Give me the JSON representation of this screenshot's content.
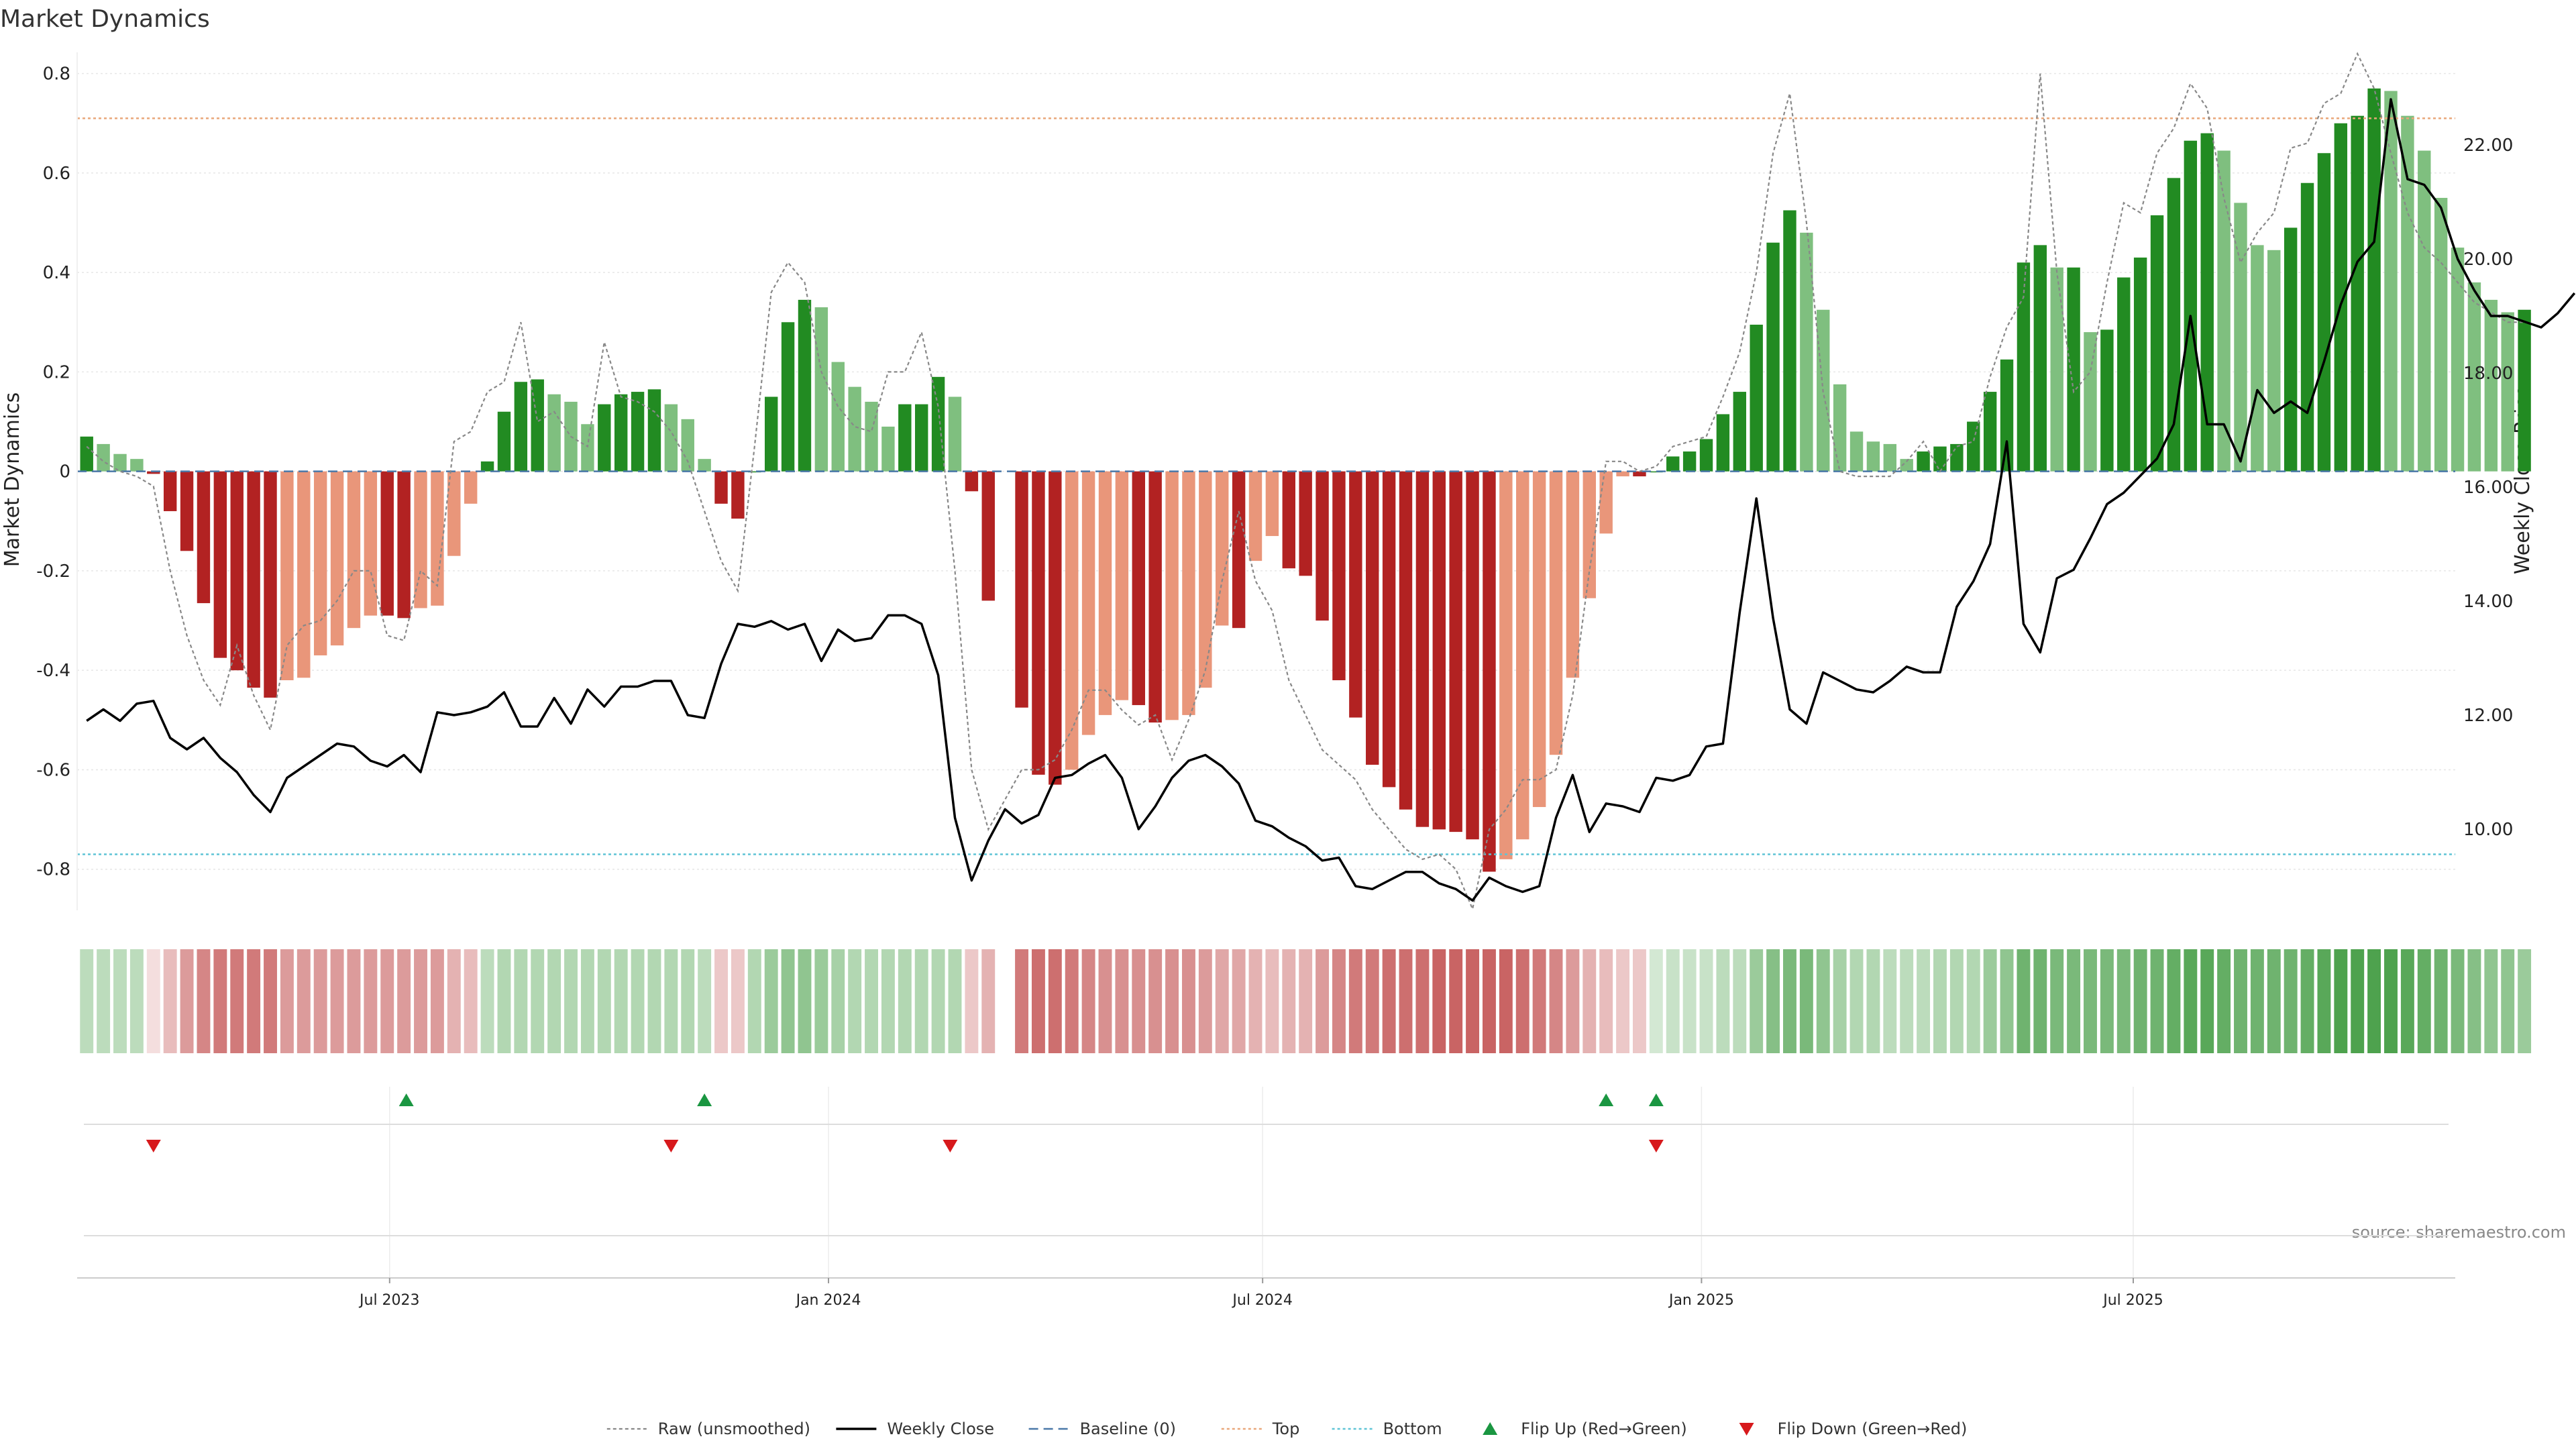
{
  "colors": {
    "dark_green": "#228B22",
    "light_green": "#7fbf7f",
    "dark_red": "#b22222",
    "light_red": "#e9967a",
    "raw_line": "#888888",
    "close_line": "#000000",
    "baseline": "#4a78a8",
    "top": "#e9a77a",
    "bottom": "#5fc4d6",
    "flip_up": "#1a9641",
    "flip_down": "#d7191c"
  },
  "chart_data": {
    "type": "bar",
    "title": "Market Dynamics",
    "ylabel_left": "Market Dynamics",
    "ylabel_right": "Weekly Close Price",
    "ylim_left": [
      -0.88,
      0.84
    ],
    "ylim_right": [
      8.6,
      23.6
    ],
    "yticks_left": [
      "-0.8",
      "-0.6",
      "-0.4",
      "-0.2",
      "0",
      "0.2",
      "0.4",
      "0.6",
      "0.8"
    ],
    "yticks_right": [
      "10.00",
      "12.00",
      "14.00",
      "16.00",
      "18.00",
      "20.00",
      "22.00"
    ],
    "x_range": [
      "2023-02-20",
      "2025-11-13"
    ],
    "xticks": [
      {
        "date": "2023-07-01",
        "label": "Jul 2023"
      },
      {
        "date": "2024-01-01",
        "label": "Jan 2024"
      },
      {
        "date": "2024-07-01",
        "label": "Jul 2024"
      },
      {
        "date": "2025-01-01",
        "label": "Jan 2025"
      },
      {
        "date": "2025-07-01",
        "label": "Jul 2025"
      }
    ],
    "start_week": "2023-02-24",
    "top_level": 0.71,
    "bottom_level": -0.77,
    "baseline_level": 0,
    "bars": [
      0.07,
      0.055,
      0.035,
      0.025,
      -0.005,
      -0.08,
      -0.16,
      -0.265,
      -0.375,
      -0.4,
      -0.435,
      -0.455,
      -0.42,
      -0.415,
      -0.37,
      -0.35,
      -0.315,
      -0.29,
      -0.29,
      -0.295,
      -0.275,
      -0.27,
      -0.17,
      -0.065,
      0.02,
      0.12,
      0.18,
      0.185,
      0.155,
      0.14,
      0.095,
      0.135,
      0.155,
      0.16,
      0.165,
      0.135,
      0.105,
      0.025,
      -0.065,
      -0.095,
      0.0,
      0.15,
      0.3,
      0.345,
      0.33,
      0.22,
      0.17,
      0.14,
      0.09,
      0.135,
      0.135,
      0.19,
      0.15,
      -0.04,
      -0.26,
      null,
      -0.475,
      -0.61,
      -0.63,
      -0.6,
      -0.53,
      -0.49,
      -0.46,
      -0.47,
      -0.505,
      -0.5,
      -0.49,
      -0.435,
      -0.31,
      -0.315,
      -0.18,
      -0.13,
      -0.195,
      -0.21,
      -0.3,
      -0.42,
      -0.495,
      -0.59,
      -0.635,
      -0.68,
      -0.715,
      -0.72,
      -0.725,
      -0.74,
      -0.805,
      -0.78,
      -0.74,
      -0.675,
      -0.57,
      -0.415,
      -0.255,
      -0.125,
      -0.01,
      -0.01,
      0.0,
      0.03,
      0.04,
      0.065,
      0.115,
      0.16,
      0.295,
      0.46,
      0.525,
      0.48,
      0.325,
      0.175,
      0.08,
      0.06,
      0.055,
      0.025,
      0.04,
      0.05,
      0.055,
      0.1,
      0.16,
      0.225,
      0.42,
      0.455,
      0.41,
      0.41,
      0.28,
      0.285,
      0.39,
      0.43,
      0.515,
      0.59,
      0.665,
      0.68,
      0.645,
      0.54,
      0.455,
      0.445,
      0.49,
      0.58,
      0.64,
      0.7,
      0.715,
      0.77,
      0.765,
      0.715,
      0.645,
      0.55,
      0.45,
      0.38,
      0.345,
      0.32,
      0.325
    ],
    "raw": [
      0.05,
      0.02,
      0.0,
      -0.01,
      -0.03,
      -0.2,
      -0.33,
      -0.42,
      -0.47,
      -0.35,
      -0.45,
      -0.52,
      -0.35,
      -0.31,
      -0.3,
      -0.26,
      -0.2,
      -0.2,
      -0.33,
      -0.34,
      -0.2,
      -0.23,
      0.06,
      0.08,
      0.16,
      0.18,
      0.3,
      0.1,
      0.12,
      0.07,
      0.05,
      0.26,
      0.15,
      0.14,
      0.12,
      0.08,
      0.02,
      -0.08,
      -0.18,
      -0.24,
      0.05,
      0.36,
      0.42,
      0.38,
      0.2,
      0.13,
      0.09,
      0.08,
      0.2,
      0.2,
      0.28,
      0.13,
      -0.2,
      -0.6,
      -0.72,
      -0.66,
      -0.6,
      -0.6,
      -0.58,
      -0.52,
      -0.44,
      -0.44,
      -0.48,
      -0.51,
      -0.49,
      -0.58,
      -0.5,
      -0.4,
      -0.22,
      -0.08,
      -0.22,
      -0.28,
      -0.42,
      -0.49,
      -0.56,
      -0.59,
      -0.62,
      -0.68,
      -0.72,
      -0.76,
      -0.78,
      -0.77,
      -0.8,
      -0.88,
      -0.72,
      -0.68,
      -0.62,
      -0.62,
      -0.6,
      -0.45,
      -0.2,
      0.02,
      0.02,
      0.0,
      0.01,
      0.05,
      0.06,
      0.07,
      0.15,
      0.24,
      0.4,
      0.64,
      0.76,
      0.5,
      0.16,
      0.0,
      -0.01,
      -0.01,
      -0.01,
      0.02,
      0.06,
      0.0,
      0.05,
      0.06,
      0.19,
      0.29,
      0.35,
      0.8,
      0.4,
      0.16,
      0.2,
      0.38,
      0.54,
      0.52,
      0.64,
      0.69,
      0.78,
      0.73,
      0.55,
      0.42,
      0.48,
      0.52,
      0.65,
      0.66,
      0.74,
      0.76,
      0.84,
      0.77,
      0.64,
      0.52,
      0.45,
      0.42,
      0.38,
      0.34,
      0.32,
      0.3,
      0.3
    ],
    "close": [
      11.9,
      12.1,
      11.9,
      12.2,
      12.25,
      11.6,
      11.4,
      11.6,
      11.25,
      11.0,
      10.6,
      10.3,
      10.9,
      11.1,
      11.3,
      11.5,
      11.45,
      11.2,
      11.1,
      11.3,
      11.0,
      12.05,
      12.0,
      12.05,
      12.15,
      12.4,
      11.8,
      11.8,
      12.3,
      11.85,
      12.45,
      12.15,
      12.5,
      12.5,
      12.6,
      12.6,
      12.0,
      11.95,
      12.9,
      13.6,
      13.55,
      13.65,
      13.5,
      13.6,
      12.95,
      13.5,
      13.3,
      13.35,
      13.75,
      13.75,
      13.6,
      12.7,
      10.2,
      9.1,
      9.8,
      10.35,
      10.1,
      10.25,
      10.9,
      10.95,
      11.15,
      11.3,
      10.9,
      10.0,
      10.4,
      10.9,
      11.2,
      11.3,
      11.1,
      10.8,
      10.15,
      10.05,
      9.85,
      9.7,
      9.45,
      9.5,
      9.0,
      8.95,
      9.1,
      9.25,
      9.25,
      9.05,
      8.95,
      8.75,
      9.15,
      9.0,
      8.9,
      9.0,
      10.2,
      10.95,
      9.95,
      10.45,
      10.4,
      10.3,
      10.9,
      10.85,
      10.95,
      11.45,
      11.5,
      13.8,
      15.8,
      13.7,
      12.1,
      11.85,
      12.75,
      12.6,
      12.45,
      12.4,
      12.6,
      12.85,
      12.75,
      12.75,
      13.9,
      14.35,
      15.0,
      16.8,
      13.6,
      13.1,
      14.4,
      14.55,
      15.1,
      15.7,
      15.9,
      16.2,
      16.5,
      17.1,
      19.0,
      17.1,
      17.1,
      16.45,
      17.7,
      17.3,
      17.5,
      17.3,
      18.2,
      19.2,
      19.95,
      20.3,
      22.8,
      21.4,
      21.3,
      20.9,
      20.0,
      19.45,
      19.0,
      19.0,
      18.9,
      18.8,
      19.05,
      19.4
    ],
    "heat_alpha": [
      0.3,
      0.3,
      0.3,
      0.3,
      0.15,
      0.3,
      0.45,
      0.55,
      0.6,
      0.6,
      0.6,
      0.6,
      0.45,
      0.45,
      0.45,
      0.45,
      0.45,
      0.45,
      0.45,
      0.45,
      0.45,
      0.45,
      0.35,
      0.3,
      0.3,
      0.35,
      0.35,
      0.35,
      0.35,
      0.35,
      0.35,
      0.35,
      0.35,
      0.35,
      0.35,
      0.35,
      0.35,
      0.3,
      0.25,
      0.25,
      0.35,
      0.45,
      0.5,
      0.5,
      0.45,
      0.4,
      0.35,
      0.35,
      0.35,
      0.35,
      0.35,
      0.35,
      0.35,
      0.25,
      0.35,
      null,
      0.6,
      0.65,
      0.65,
      0.6,
      0.55,
      0.5,
      0.5,
      0.5,
      0.5,
      0.5,
      0.5,
      0.45,
      0.4,
      0.4,
      0.35,
      0.3,
      0.35,
      0.35,
      0.45,
      0.55,
      0.6,
      0.6,
      0.65,
      0.65,
      0.65,
      0.7,
      0.7,
      0.7,
      0.7,
      0.7,
      0.65,
      0.6,
      0.55,
      0.45,
      0.35,
      0.3,
      0.25,
      0.25,
      0.2,
      0.25,
      0.25,
      0.25,
      0.3,
      0.3,
      0.45,
      0.55,
      0.6,
      0.6,
      0.5,
      0.4,
      0.35,
      0.35,
      0.3,
      0.3,
      0.3,
      0.35,
      0.35,
      0.35,
      0.45,
      0.5,
      0.65,
      0.65,
      0.6,
      0.6,
      0.6,
      0.6,
      0.6,
      0.65,
      0.65,
      0.7,
      0.75,
      0.75,
      0.7,
      0.65,
      0.65,
      0.65,
      0.65,
      0.7,
      0.75,
      0.8,
      0.8,
      0.8,
      0.8,
      0.75,
      0.7,
      0.65,
      0.6,
      0.55,
      0.5,
      0.5,
      0.45,
      0.45
    ],
    "flips_up": [
      "2023-07-08",
      "2023-11-10",
      "2024-11-22",
      "2024-12-13"
    ],
    "flips_down": [
      "2023-03-24",
      "2023-10-27",
      "2024-02-21",
      "2024-12-13"
    ],
    "legend_position": "bottom-center",
    "legend": [
      {
        "key": "raw",
        "label": "Raw (unsmoothed)"
      },
      {
        "key": "close",
        "label": "Weekly Close"
      },
      {
        "key": "baseline",
        "label": "Baseline (0)"
      },
      {
        "key": "top",
        "label": "Top"
      },
      {
        "key": "bottom",
        "label": "Bottom"
      },
      {
        "key": "flip_up",
        "label": "Flip Up (Red→Green)"
      },
      {
        "key": "flip_down",
        "label": "Flip Down (Green→Red)"
      }
    ],
    "source": "source: sharemaestro.com"
  }
}
